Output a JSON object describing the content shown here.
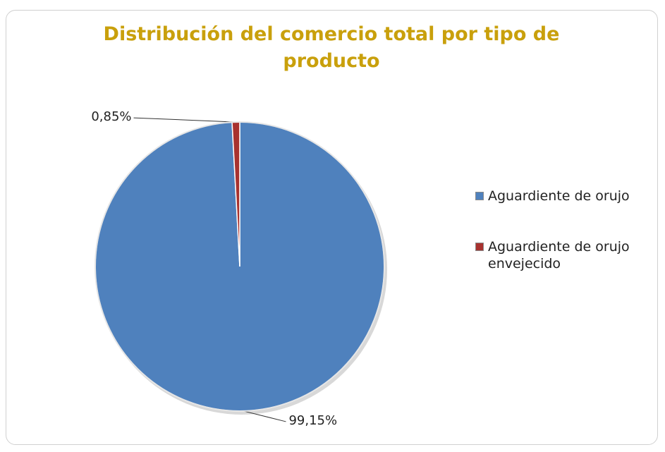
{
  "chart_data": {
    "type": "pie",
    "title": "Distribución del comercio total por tipo de producto",
    "categories": [
      "Aguardiente de orujo",
      "Aguardiente de orujo envejecido"
    ],
    "values": [
      99.15,
      0.85
    ],
    "value_labels": [
      "99,15%",
      "0,85%"
    ],
    "colors": [
      "#4f81bd",
      "#a8322f"
    ],
    "legend": "right"
  }
}
